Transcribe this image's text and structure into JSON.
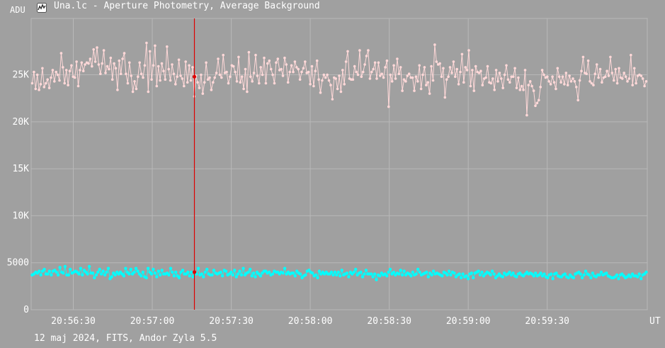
{
  "window": {
    "title": "Una.lc - Aperture Photometry, Average Background"
  },
  "icons": {
    "title": "chart-app-icon"
  },
  "footer": {
    "text": "12 maj 2024, FITS, Andor Zyla 5.5"
  },
  "colors": {
    "background": "#a0a0a0",
    "grid": "#b8b8b8",
    "series_upper": "#ffd8d8",
    "series_lower": "#00ffff",
    "cursor": "#dd0000",
    "text": "#ffffff"
  },
  "chart_data": {
    "type": "line",
    "title": "Una.lc - Aperture Photometry, Average Background",
    "xlabel": "UT",
    "ylabel": "ADU",
    "x_ticks": [
      "20:56:30",
      "20:57:00",
      "20:57:30",
      "20:58:00",
      "20:58:30",
      "20:59:00",
      "20:59:30"
    ],
    "x_tick_seconds": [
      30,
      60,
      90,
      120,
      150,
      180,
      210
    ],
    "x_origin_time": "20:56:00",
    "x_range_seconds": [
      14,
      248
    ],
    "y_ticks": [
      "0",
      "5000",
      "10K",
      "15K",
      "20K",
      "25K"
    ],
    "y_tick_values": [
      0,
      5000,
      10000,
      15000,
      20000,
      25000
    ],
    "ylim": [
      0,
      31000
    ],
    "grid": true,
    "cursor": {
      "x_seconds": 76,
      "upper_value": 24800,
      "lower_value": 4000
    },
    "series": [
      {
        "values": [
          24100,
          25300,
          23500,
          25000,
          23400,
          24000,
          25700,
          23700,
          24100,
          24500,
          23600,
          24700,
          25500,
          24300,
          25300,
          25000,
          24400,
          27300,
          25800,
          24100,
          25500,
          23900,
          25400,
          26000,
          24800,
          24700,
          26400,
          23800,
          25500,
          26300,
          25400,
          26100,
          26300,
          26200,
          26700,
          25900,
          27700,
          26400,
          27900,
          26100,
          25100,
          26200,
          27600,
          25200,
          25900,
          25600,
          26800,
          24500,
          26200,
          25700,
          23400,
          26500,
          25100,
          26700,
          27300,
          25100,
          24100,
          26300,
          24900,
          23200,
          24300,
          23500,
          24800,
          26300,
          25100,
          24700,
          26000,
          28400,
          23200,
          27500,
          24500,
          26000,
          28100,
          23800,
          25900,
          24400,
          26200,
          25400,
          24500,
          28000,
          25600,
          24400,
          26100,
          25100,
          24000,
          24800,
          26600,
          24900,
          24600,
          23800,
          26400,
          24200,
          26000,
          24400,
          25800,
          22700,
          24900,
          24200,
          23600,
          25000,
          23000,
          24200,
          26300,
          24500,
          24700,
          23400,
          24200,
          24700,
          25200,
          26700,
          25000,
          24700,
          27100,
          25200,
          25300,
          24100,
          24800,
          26000,
          25900,
          25300,
          24300,
          26900,
          24200,
          24800,
          23500,
          25600,
          23200,
          27400,
          24800,
          24300,
          25200,
          27100,
          24900,
          24100,
          25800,
          25000,
          26800,
          24100,
          26200,
          26500,
          25600,
          25000,
          24100,
          26300,
          26700,
          25500,
          25600,
          24900,
          26800,
          26100,
          24200,
          25300,
          26000,
          25300,
          26400,
          25800,
          25600,
          24500,
          25300,
          25700,
          26400,
          25200,
          25300,
          24000,
          25900,
          23800,
          25400,
          26500,
          24500,
          23100,
          24400,
          25000,
          24700,
          25000,
          24400,
          23900,
          22400,
          24700,
          24600,
          23500,
          24900,
          23200,
          25500,
          24000,
          26400,
          27500,
          24600,
          24500,
          24500,
          25900,
          25300,
          25000,
          27600,
          24800,
          25300,
          26100,
          27000,
          27600,
          24600,
          25300,
          25600,
          26300,
          24600,
          26300,
          24900,
          25100,
          24700,
          25800,
          26500,
          21600,
          25000,
          24300,
          26000,
          24600,
          26700,
          25100,
          25800,
          23300,
          24500,
          24300,
          24900,
          25100,
          24700,
          24700,
          23300,
          24800,
          24300,
          26000,
          23500,
          25000,
          25800,
          23900,
          24200,
          23000,
          25900,
          24400,
          28200,
          26400,
          26100,
          26200,
          24800,
          25700,
          22600,
          24500,
          24800,
          25800,
          25200,
          26400,
          24800,
          25600,
          24000,
          25300,
          27200,
          24200,
          25800,
          25500,
          27600,
          23800,
          25500,
          23300,
          25900,
          25300,
          25200,
          25400,
          23900,
          24600,
          24700,
          25900,
          24200,
          24100,
          24600,
          23400,
          25500,
          24300,
          25200,
          24600,
          23600,
          25000,
          26000,
          24500,
          24200,
          24800,
          24800,
          25700,
          23600,
          24700,
          23400,
          23800,
          23400,
          25500,
          20700,
          23900,
          24300,
          23800,
          23300,
          21700,
          22000,
          22300,
          23700,
          25500,
          25000,
          24700,
          24800,
          24300,
          24000,
          24800,
          24200,
          23500,
          25700,
          24800,
          24200,
          24800,
          24000,
          25200,
          23900,
          24900,
          24300,
          24600,
          24300,
          23700,
          22300,
          24400,
          25400,
          26900,
          25200,
          25100,
          26500,
          24300,
          24100,
          23900,
          25100,
          26100,
          24700,
          25600,
          24200,
          24700,
          24800,
          25400,
          24900,
          26900,
          25200,
          24400,
          25600,
          24100,
          25700,
          24700,
          24600,
          25200,
          24800,
          24300,
          24600,
          27100,
          23900,
          25700,
          24100,
          24900,
          25000,
          24900,
          24600,
          23800,
          24300
        ]
      },
      {
        "values": [
          3700,
          3800,
          4000,
          3900,
          4100,
          3700,
          4100,
          4300,
          3800,
          3800,
          4100,
          3700,
          4100,
          4200,
          4000,
          3700,
          4500,
          4000,
          3900,
          4600,
          3700,
          3700,
          4300,
          3900,
          4000,
          4100,
          4000,
          3800,
          4400,
          3700,
          4200,
          4000,
          3800,
          4600,
          3900,
          3900,
          3400,
          3700,
          4000,
          4300,
          3800,
          4100,
          3700,
          4000,
          4400,
          3300,
          3500,
          3900,
          3700,
          4000,
          3800,
          4000,
          3800,
          3600,
          4400,
          4000,
          3800,
          4300,
          3800,
          4000,
          4400,
          4100,
          3800,
          3600,
          4000,
          3500,
          3400,
          4400,
          4000,
          3800,
          4300,
          3900,
          3500,
          4100,
          3700,
          4200,
          3800,
          3800,
          3900,
          3700,
          4400,
          4000,
          3600,
          4000,
          3600,
          3400,
          4000,
          4200,
          3800,
          3800,
          4000,
          3600,
          4000,
          3500,
          3900,
          3800,
          4400,
          3700,
          3800,
          3500,
          4000,
          4300,
          3800,
          3700,
          3700,
          4200,
          3900,
          3800,
          3900,
          4000,
          3600,
          4200,
          4100,
          3700,
          3800,
          4000,
          3700,
          4200,
          3500,
          3800,
          4100,
          3700,
          4400,
          3700,
          3900,
          4000,
          4300,
          3600,
          3900,
          3500,
          4000,
          3800,
          3600,
          3900,
          4100,
          4100,
          3900,
          4000,
          3700,
          3800,
          4100,
          4000,
          4000,
          3800,
          4000,
          3900,
          4400,
          3800,
          4000,
          3800,
          3900,
          3900,
          3600,
          4100,
          3900,
          3800,
          3400,
          3600,
          3700,
          4100,
          4200,
          4000,
          3900,
          3600,
          3700,
          3400,
          4100,
          3800,
          4000,
          3800,
          4000,
          3800,
          3800,
          4000,
          3700,
          4000,
          3700,
          4000,
          3600,
          4200,
          3700,
          3800,
          3900,
          3500,
          4000,
          3800,
          4000,
          4300,
          3700,
          3900,
          4000,
          3500,
          3800,
          4200,
          3800,
          3800,
          3800,
          3500,
          3800,
          3200,
          3700,
          3600,
          3900,
          3700,
          3800,
          3600,
          4000,
          4300,
          3800,
          4000,
          3700,
          3900,
          3800,
          4200,
          3700,
          4100,
          3700,
          3900,
          3800,
          3600,
          4000,
          3700,
          3800,
          4300,
          4000,
          3700,
          3800,
          3900,
          4000,
          3500,
          3900,
          3700,
          4100,
          3800,
          3900,
          3800,
          3700,
          3600,
          4000,
          3900,
          3700,
          4100,
          3700,
          4000,
          3900,
          3500,
          3700,
          3800,
          3400,
          3800,
          3500,
          3600,
          3300,
          3800,
          3900,
          3400,
          3900,
          4000,
          4100,
          3700,
          4000,
          3600,
          3800,
          4000,
          3900,
          3700,
          4100,
          3800,
          3400,
          3600,
          3800,
          3600,
          3500,
          3900,
          3700,
          3800,
          4000,
          3700,
          3900,
          3600,
          3500,
          3800,
          3900,
          3700,
          3600,
          3800,
          4000,
          3800,
          3900,
          3800,
          3600,
          3900,
          3600,
          3700,
          3900,
          3600,
          3800,
          3500,
          3400,
          3700,
          3800,
          3300,
          3800,
          3900,
          3600,
          3500,
          3500,
          3700,
          3800,
          3500,
          3400,
          3700,
          3500,
          3400,
          3800,
          3900,
          4000,
          3800,
          3400,
          3700,
          4100,
          3800,
          3700,
          3400,
          3900,
          3600,
          3500,
          3700,
          3700,
          4000,
          3700,
          3800,
          3900,
          3600,
          3500,
          3400,
          3400,
          3500,
          3700,
          3300,
          3700,
          3800,
          3600,
          3400,
          3500,
          3700,
          3500,
          3800,
          3600,
          3600,
          3500,
          3800,
          3300,
          3700,
          3800,
          4000
        ]
      }
    ]
  }
}
